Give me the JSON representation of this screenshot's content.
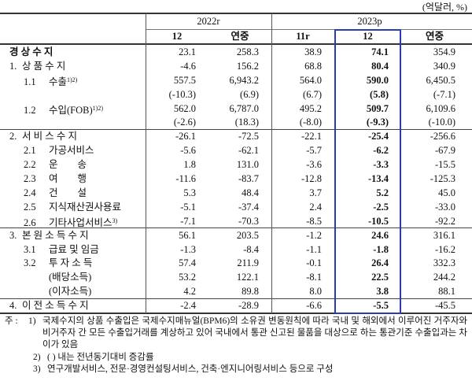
{
  "unit": "(억달러, %)",
  "header": {
    "groups": [
      {
        "label": "2022r",
        "span": 2
      },
      {
        "label": "2023p",
        "span": 3
      }
    ],
    "columns": [
      "12",
      "연중",
      "11r",
      "12",
      "연중"
    ]
  },
  "table": {
    "rows": [
      {
        "name": "경 상 수 지",
        "values": [
          "23.1",
          "258.3",
          "38.9",
          "74.1",
          "354.9"
        ]
      },
      {
        "num": "1.",
        "name": "상 품 수 지",
        "values": [
          "-4.6",
          "156.2",
          "68.8",
          "80.4",
          "340.9"
        ]
      },
      {
        "num": "1.1",
        "name": "수출",
        "note": "1)2)",
        "values": [
          "557.5",
          "6,943.2",
          "564.0",
          "590.0",
          "6,450.5"
        ]
      },
      {
        "values": [
          "(-10.3)",
          "(6.9)",
          "(6.7)",
          "(5.8)",
          "(-7.1)"
        ]
      },
      {
        "num": "1.2",
        "name": "수입(FOB)",
        "note": "1)2)",
        "values": [
          "562.0",
          "6,787.0",
          "495.2",
          "509.7",
          "6,109.6"
        ]
      },
      {
        "values": [
          "(-2.6)",
          "(18.3)",
          "(-8.0)",
          "(-9.3)",
          "(-10.0)"
        ]
      },
      {
        "num": "2.",
        "name": "서 비 스 수 지",
        "values": [
          "-26.1",
          "-72.5",
          "-22.1",
          "-25.4",
          "-256.6"
        ]
      },
      {
        "num": "2.1",
        "name": "가공서비스",
        "values": [
          "-5.6",
          "-62.1",
          "-5.7",
          "-6.2",
          "-67.9"
        ]
      },
      {
        "num": "2.2",
        "name": "운　　송",
        "values": [
          "1.8",
          "131.0",
          "-3.6",
          "-3.3",
          "-15.5"
        ]
      },
      {
        "num": "2.3",
        "name": "여　　행",
        "values": [
          "-11.6",
          "-83.7",
          "-12.8",
          "-13.4",
          "-125.3"
        ]
      },
      {
        "num": "2.4",
        "name": "건　　설",
        "values": [
          "5.3",
          "48.4",
          "3.7",
          "5.2",
          "45.0"
        ]
      },
      {
        "num": "2.5",
        "name": "지식재산권사용료",
        "values": [
          "-5.1",
          "-37.4",
          "2.4",
          "-2.5",
          "-33.0"
        ]
      },
      {
        "num": "2.6",
        "name": "기타사업서비스",
        "note": "3)",
        "values": [
          "-7.1",
          "-70.3",
          "-8.5",
          "-10.5",
          "-92.2"
        ]
      },
      {
        "num": "3.",
        "name": "본 원 소 득 수 지",
        "values": [
          "56.1",
          "203.5",
          "-1.2",
          "24.6",
          "316.1"
        ]
      },
      {
        "num": "3.1",
        "name": "급료 및 임금",
        "values": [
          "-1.3",
          "-8.4",
          "-1.1",
          "-1.8",
          "-16.2"
        ]
      },
      {
        "num": "3.2",
        "name": "투 자 소 득",
        "values": [
          "57.4",
          "211.9",
          "-0.1",
          "26.4",
          "332.3"
        ]
      },
      {
        "name": "(배당소득)",
        "values": [
          "53.2",
          "122.1",
          "-8.1",
          "22.5",
          "244.2"
        ]
      },
      {
        "name": "(이자소득)",
        "values": [
          "4.2",
          "89.8",
          "8.0",
          "3.8",
          "88.1"
        ]
      },
      {
        "num": "4.",
        "name": "이 전 소 득 수 지",
        "values": [
          "-2.4",
          "-28.9",
          "-6.6",
          "-5.5",
          "-45.5"
        ]
      }
    ]
  },
  "notes": {
    "prefix": "주 :",
    "items": [
      {
        "mark": "1)",
        "text": "국제수지의 상품 수출입은 국제수지매뉴얼(BPM6)의 소유권 변동원칙에 따라 국내 및 해외에서 이루어진 거주자와 비거주자 간 모든 수출입거래를 계상하고 있어 국내에서 통관 신고된 물품을 대상으로 하는 통관기준 수출입과는 차이가 있음"
      },
      {
        "mark": "2)",
        "text": "( ) 내는 전년동기대비 증감률"
      },
      {
        "mark": "3)",
        "text": "연구개발서비스, 전문·경영컨설팅서비스, 건축·엔지니어링서비스 등으로 구성"
      }
    ]
  }
}
